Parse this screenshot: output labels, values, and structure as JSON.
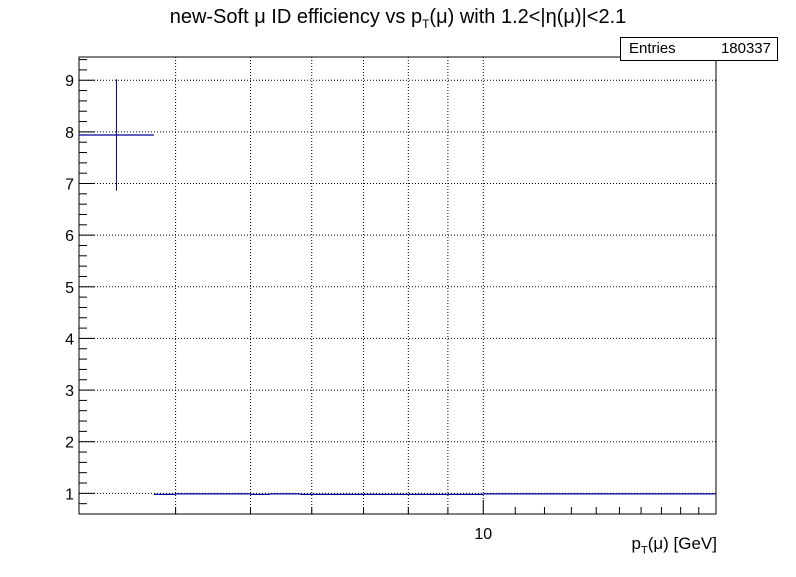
{
  "title": {
    "pre": "new-Soft ",
    "mu": "μ",
    "mid": " ID efficiency vs p",
    "sub": "T",
    "post": "(μ) with 1.2<|η(μ)|<2.1"
  },
  "stats_box": {
    "label": "Entries",
    "value": "180337"
  },
  "x_axis_label": {
    "p": "p",
    "sub": "T",
    "rest": "(μ) [GeV]"
  },
  "chart_data": {
    "type": "line",
    "x_scale": "log",
    "xlim": [
      3,
      20
    ],
    "ylim": [
      0.6,
      9.45
    ],
    "x_tick_labels": [
      {
        "x": 10,
        "label": "10"
      }
    ],
    "y_ticks": [
      1,
      2,
      3,
      4,
      5,
      6,
      7,
      8,
      9
    ],
    "grid": true,
    "series": [
      {
        "points": [
          {
            "x_low": 3.0,
            "x_high": 3.75,
            "y": 7.94,
            "y_err": 1.08
          },
          {
            "x_low": 3.75,
            "x_high": 4.0,
            "y": 0.98,
            "y_err": 0.0
          },
          {
            "x_low": 4.0,
            "x_high": 5.0,
            "y": 0.99,
            "y_err": 0.0
          },
          {
            "x_low": 5.0,
            "x_high": 5.3,
            "y": 0.98,
            "y_err": 0.0
          },
          {
            "x_low": 5.3,
            "x_high": 5.8,
            "y": 0.99,
            "y_err": 0.0
          },
          {
            "x_low": 5.8,
            "x_high": 7.0,
            "y": 0.98,
            "y_err": 0.0
          },
          {
            "x_low": 7.0,
            "x_high": 8.0,
            "y": 0.98,
            "y_err": 0.0
          },
          {
            "x_low": 8.0,
            "x_high": 10.0,
            "y": 0.98,
            "y_err": 0.0
          },
          {
            "x_low": 10.0,
            "x_high": 20.0,
            "y": 0.99,
            "y_err": 0.0
          }
        ]
      }
    ]
  },
  "colors": {
    "series": "#000099",
    "grid": "#000000",
    "frame": "#000000"
  }
}
